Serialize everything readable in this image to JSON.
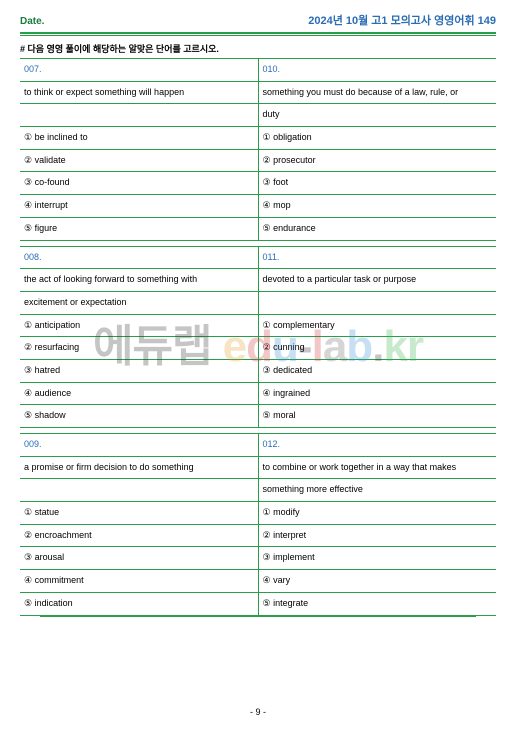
{
  "header": {
    "date_label": "Date.",
    "title": "2024년 10월 고1 모의고사 영영어휘 149"
  },
  "instruction": "# 다음 영영 풀이에 해당하는 알맞은 단어를 고르시오.",
  "blocks": [
    {
      "left": {
        "num": "007.",
        "def": "to think or expect something will happen",
        "opts": [
          "① be inclined to",
          "② validate",
          "③ co-found",
          "④ interrupt",
          "⑤ figure"
        ]
      },
      "right": {
        "num": "010.",
        "def": "something you must do because of a law, rule, or",
        "def2": "duty",
        "opts": [
          "① obligation",
          "② prosecutor",
          "③ foot",
          "④ mop",
          "⑤ endurance"
        ]
      }
    },
    {
      "left": {
        "num": "008.",
        "def": "the act of looking forward to something with",
        "def2": "excitement or expectation",
        "opts": [
          "① anticipation",
          "② resurfacing",
          "③ hatred",
          "④ audience",
          "⑤ shadow"
        ]
      },
      "right": {
        "num": "011.",
        "def": "devoted to a particular task or purpose",
        "opts": [
          "① complementary",
          "② cunning",
          "③ dedicated",
          "④ ingrained",
          "⑤ moral"
        ]
      }
    },
    {
      "left": {
        "num": "009.",
        "def": "a promise or firm decision to do something",
        "opts": [
          "① statue",
          "② encroachment",
          "③ arousal",
          "④ commitment",
          "⑤ indication"
        ]
      },
      "right": {
        "num": "012.",
        "def": "to combine or work together in a way that makes",
        "def2": "something more effective",
        "opts": [
          "① modify",
          "② interpret",
          "③ implement",
          "④ vary",
          "⑤ integrate"
        ]
      }
    }
  ],
  "footer": {
    "page": "- 9 -"
  },
  "watermark": {
    "korean": "에듀랩 ",
    "en": "edu-lab.kr"
  }
}
